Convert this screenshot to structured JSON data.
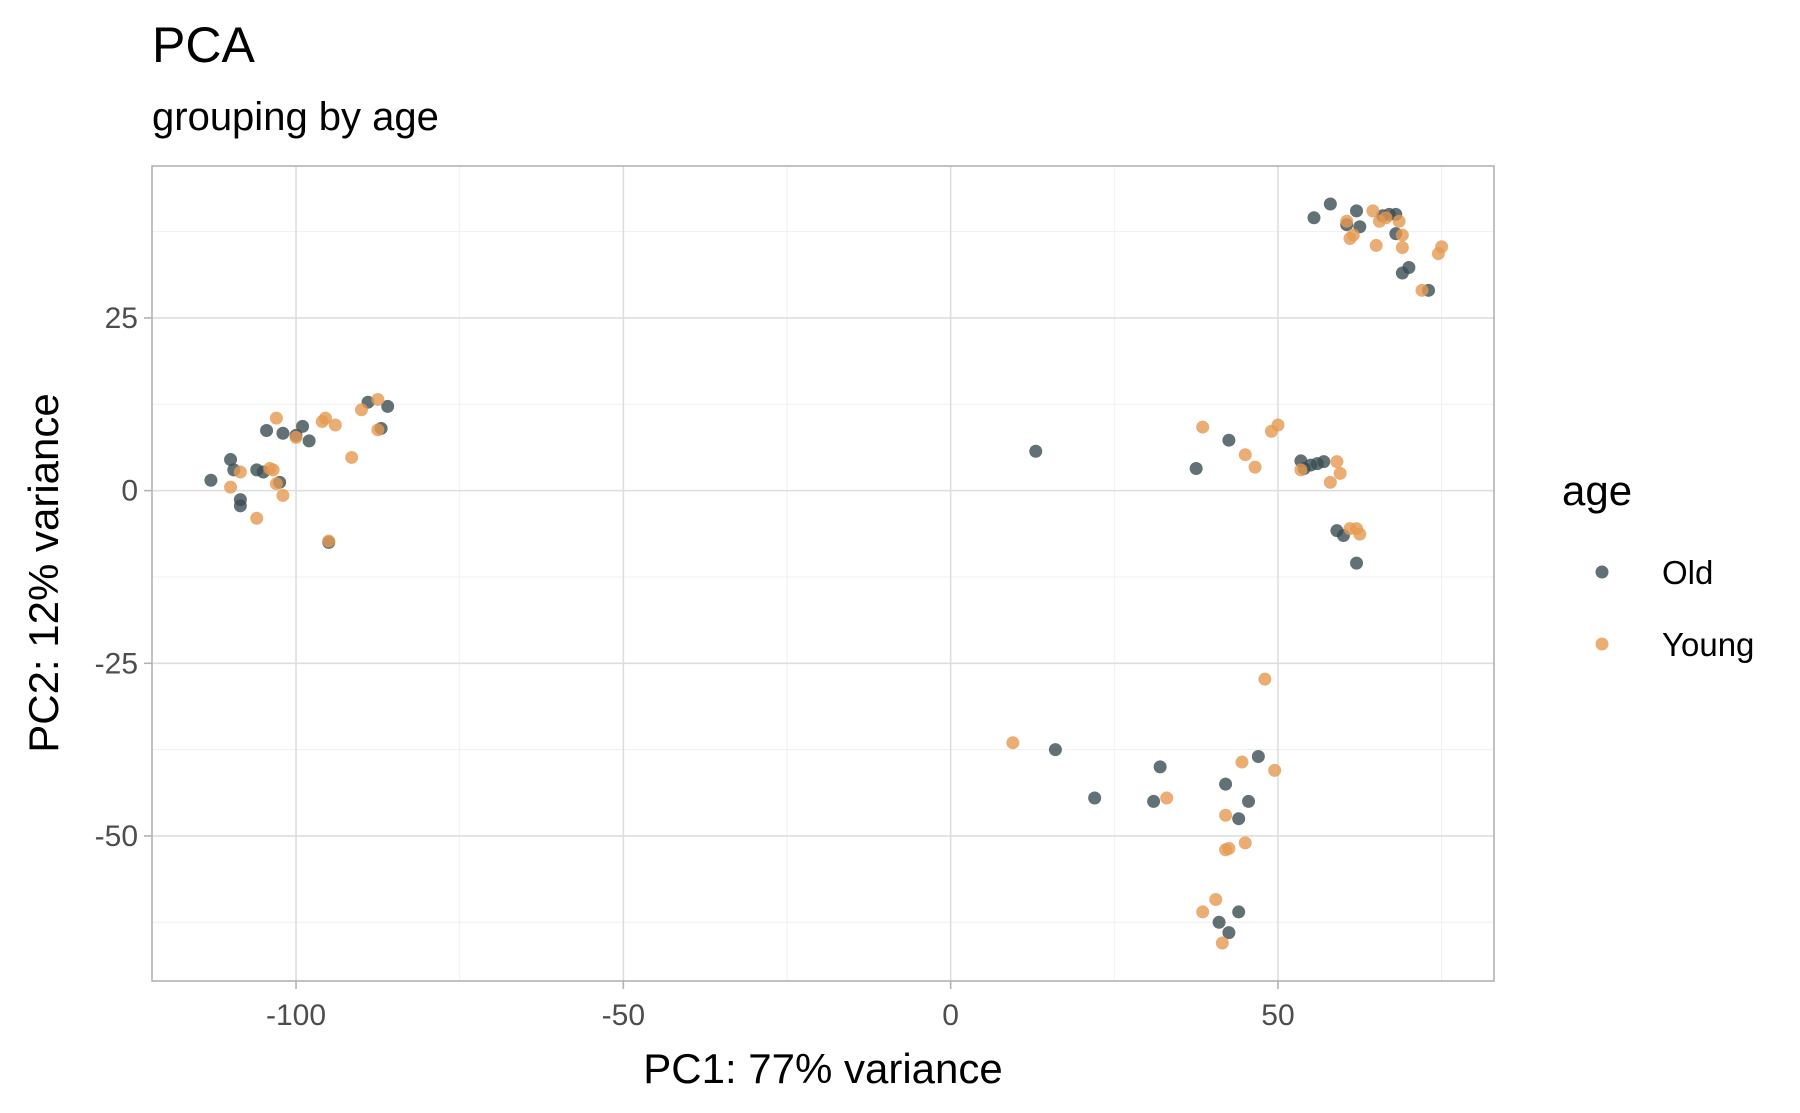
{
  "chart_data": {
    "type": "scatter",
    "title": "PCA",
    "subtitle": "grouping by age",
    "xlabel": "PC1: 77% variance",
    "ylabel": "PC2: 12% variance",
    "xlim": [
      -122,
      83
    ],
    "ylim": [
      -71,
      47
    ],
    "x_ticks": [
      -100,
      -50,
      0,
      50
    ],
    "x_tick_labels": [
      "-100",
      "-50",
      "0",
      "50"
    ],
    "y_ticks": [
      -50,
      -25,
      0,
      25
    ],
    "y_tick_labels": [
      "-50",
      "-25",
      "0",
      "25"
    ],
    "x_minor": [
      -125,
      -75,
      -25,
      25,
      75
    ],
    "y_minor": [
      -62.5,
      -37.5,
      -12.5,
      12.5,
      37.5
    ],
    "grid": true,
    "legend": {
      "title": "age",
      "position": "right"
    },
    "series": [
      {
        "name": "Old",
        "color": "#3b4d52",
        "points": [
          [
            -113,
            1.5
          ],
          [
            -110,
            4.5
          ],
          [
            -109.5,
            3
          ],
          [
            -108.5,
            -1.3
          ],
          [
            -108.5,
            -2.2
          ],
          [
            -106,
            3
          ],
          [
            -105,
            2.7
          ],
          [
            -104.5,
            8.7
          ],
          [
            -102.5,
            1.2
          ],
          [
            -102,
            8.3
          ],
          [
            -100,
            8
          ],
          [
            -99,
            9.3
          ],
          [
            -98,
            7.2
          ],
          [
            -95,
            -7.5
          ],
          [
            -89,
            12.8
          ],
          [
            -87,
            9
          ],
          [
            -86,
            12.2
          ],
          [
            13,
            5.7
          ],
          [
            16,
            -37.5
          ],
          [
            22,
            -44.5
          ],
          [
            31,
            -45
          ],
          [
            32,
            -40
          ],
          [
            37.5,
            3.2
          ],
          [
            41,
            -62.5
          ],
          [
            42,
            -42.5
          ],
          [
            42.5,
            7.3
          ],
          [
            42.5,
            -64
          ],
          [
            44,
            -47.5
          ],
          [
            44,
            -61
          ],
          [
            45.5,
            -45
          ],
          [
            47,
            -38.5
          ],
          [
            53.5,
            4.3
          ],
          [
            54,
            3.2
          ],
          [
            55,
            3.7
          ],
          [
            55.5,
            39.5
          ],
          [
            56,
            3.9
          ],
          [
            57,
            4.2
          ],
          [
            58,
            41.5
          ],
          [
            59,
            -5.8
          ],
          [
            60,
            -6.5
          ],
          [
            60.5,
            38.5
          ],
          [
            62,
            40.5
          ],
          [
            62,
            -10.5
          ],
          [
            62.5,
            38.2
          ],
          [
            66,
            39.8
          ],
          [
            67,
            40
          ],
          [
            68,
            40
          ],
          [
            68,
            37.2
          ],
          [
            69,
            31.5
          ],
          [
            70,
            32.3
          ],
          [
            73,
            29
          ]
        ]
      },
      {
        "name": "Young",
        "color": "#e59a51",
        "points": [
          [
            -110,
            0.5
          ],
          [
            -108.5,
            2.7
          ],
          [
            -106,
            -4
          ],
          [
            -104,
            3.2
          ],
          [
            -103.5,
            3
          ],
          [
            -103,
            10.5
          ],
          [
            -103,
            1
          ],
          [
            -102,
            -0.7
          ],
          [
            -100,
            7.7
          ],
          [
            -96,
            10
          ],
          [
            -95.5,
            10.5
          ],
          [
            -95,
            -7.3
          ],
          [
            -94,
            9.5
          ],
          [
            -91.5,
            4.8
          ],
          [
            -90,
            11.7
          ],
          [
            -87.5,
            13.2
          ],
          [
            -87.5,
            8.8
          ],
          [
            9.5,
            -36.5
          ],
          [
            33,
            -44.5
          ],
          [
            38.5,
            9.2
          ],
          [
            38.5,
            -61
          ],
          [
            40.5,
            -59.2
          ],
          [
            41.5,
            -65.5
          ],
          [
            42,
            -47
          ],
          [
            42,
            -52
          ],
          [
            42.5,
            -51.8
          ],
          [
            44.5,
            -39.3
          ],
          [
            45,
            5.2
          ],
          [
            45,
            -51
          ],
          [
            46.5,
            3.4
          ],
          [
            48,
            -27.3
          ],
          [
            49,
            8.6
          ],
          [
            49.5,
            -40.5
          ],
          [
            50,
            9.5
          ],
          [
            53.5,
            3
          ],
          [
            58,
            1.2
          ],
          [
            59,
            4.2
          ],
          [
            59.5,
            2.5
          ],
          [
            60.5,
            39
          ],
          [
            61,
            36.5
          ],
          [
            61,
            -5.5
          ],
          [
            61.5,
            37
          ],
          [
            62,
            -5.5
          ],
          [
            62.5,
            -6.3
          ],
          [
            64.5,
            40.5
          ],
          [
            65,
            35.5
          ],
          [
            65.5,
            39
          ],
          [
            66.5,
            39.5
          ],
          [
            68.5,
            39
          ],
          [
            69,
            37
          ],
          [
            69,
            35.2
          ],
          [
            72,
            29
          ],
          [
            74.5,
            34.3
          ],
          [
            75,
            35.3
          ]
        ]
      }
    ]
  }
}
